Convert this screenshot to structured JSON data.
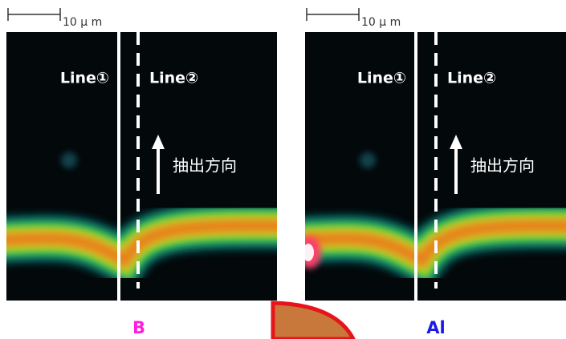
{
  "panels": [
    {
      "scale_label": "10 μ m",
      "line1": "Line①",
      "line2": "Line②",
      "direction": "抽出方向",
      "element": "B"
    },
    {
      "scale_label": "10 μ m",
      "line1": "Line①",
      "line2": "Line②",
      "direction": "抽出方向",
      "element": "Al"
    }
  ]
}
